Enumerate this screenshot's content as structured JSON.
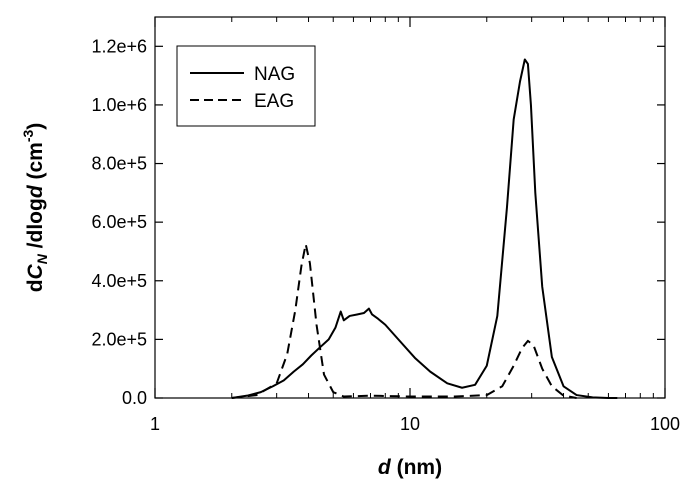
{
  "chart_data": {
    "type": "line",
    "x_scale": "log",
    "xlim": [
      1,
      100
    ],
    "ylim": [
      0,
      1300000
    ],
    "grid": false,
    "legend_position": "top-left",
    "xlabel_bold": "d",
    "xlabel_rest": " (nm)",
    "ylabel_parts": [
      "d",
      "C",
      "N",
      " /dlog",
      "d",
      " (cm",
      "-3",
      ")"
    ],
    "x_ticks": [
      {
        "value": 1,
        "label": "1"
      },
      {
        "value": 10,
        "label": "10"
      },
      {
        "value": 100,
        "label": "100"
      }
    ],
    "y_ticks": [
      {
        "value": 0,
        "label": "0.0"
      },
      {
        "value": 200000,
        "label": "2.0e+5"
      },
      {
        "value": 400000,
        "label": "4.0e+5"
      },
      {
        "value": 600000,
        "label": "6.0e+5"
      },
      {
        "value": 800000,
        "label": "8.0e+5"
      },
      {
        "value": 1000000,
        "label": "1.0e+6"
      },
      {
        "value": 1200000,
        "label": "1.2e+6"
      }
    ],
    "series": [
      {
        "name": "NAG",
        "style": "solid",
        "color": "#000000",
        "x": [
          2.0,
          2.3,
          2.6,
          2.9,
          3.2,
          3.5,
          3.8,
          4.1,
          4.4,
          4.8,
          5.1,
          5.35,
          5.5,
          5.8,
          6.2,
          6.6,
          6.9,
          7.1,
          7.5,
          8.0,
          9.0,
          10.5,
          12.0,
          14.0,
          16.0,
          18.0,
          20.0,
          22.0,
          24.0,
          25.5,
          27.0,
          28.2,
          29.0,
          29.8,
          31.0,
          33.0,
          36.0,
          40.0,
          45.0,
          52.0,
          60.0,
          65.0
        ],
        "y": [
          0,
          8000,
          20000,
          40000,
          60000,
          90000,
          115000,
          145000,
          170000,
          200000,
          240000,
          295000,
          265000,
          280000,
          285000,
          290000,
          305000,
          285000,
          270000,
          250000,
          200000,
          135000,
          90000,
          50000,
          35000,
          45000,
          110000,
          280000,
          650000,
          950000,
          1080000,
          1155000,
          1140000,
          1000000,
          700000,
          380000,
          140000,
          40000,
          10000,
          2000,
          0,
          0
        ]
      },
      {
        "name": "EAG",
        "style": "dashed",
        "color": "#000000",
        "x": [
          2.0,
          2.5,
          3.0,
          3.3,
          3.55,
          3.75,
          3.9,
          4.05,
          4.3,
          4.6,
          5.0,
          5.5,
          7.0,
          10.0,
          15.0,
          20.0,
          23.0,
          25.5,
          27.5,
          29.0,
          30.5,
          33.0,
          36.0,
          40.0,
          45.0
        ],
        "y": [
          0,
          10000,
          50000,
          150000,
          300000,
          450000,
          525000,
          460000,
          250000,
          80000,
          20000,
          5000,
          8000,
          5000,
          5000,
          10000,
          40000,
          110000,
          170000,
          195000,
          180000,
          100000,
          40000,
          8000,
          0
        ]
      }
    ]
  }
}
